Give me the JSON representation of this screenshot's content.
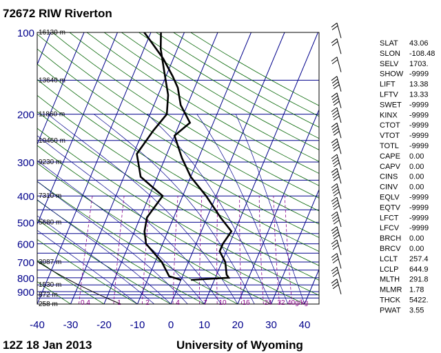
{
  "header": {
    "title": "72672 RIW Riverton"
  },
  "footer": {
    "time": "12Z 18 Jan 2013",
    "source": "University of Wyoming"
  },
  "chart_data": {
    "type": "line",
    "title": "72672 RIW Riverton",
    "pressure_ticks": [
      100,
      200,
      300,
      400,
      500,
      600,
      700,
      800,
      900
    ],
    "temperature_ticks": [
      -40,
      -30,
      -20,
      -10,
      0,
      10,
      20,
      30,
      40
    ],
    "xlim": [
      -40,
      40
    ],
    "ylim": [
      1000,
      100
    ],
    "y_scale": "log",
    "height_labels": [
      {
        "p": 100,
        "label": "16130 m"
      },
      {
        "p": 150,
        "label": "13640 m"
      },
      {
        "p": 200,
        "label": "11860 m"
      },
      {
        "p": 250,
        "label": "10460 m"
      },
      {
        "p": 300,
        "label": "9230 m"
      },
      {
        "p": 400,
        "label": "7310 m"
      },
      {
        "p": 500,
        "label": "5680 m"
      },
      {
        "p": 700,
        "label": "3087 m"
      },
      {
        "p": 850,
        "label": "1530 m"
      },
      {
        "p": 925,
        "label": "872 m"
      },
      {
        "p": 1000,
        "label": "258 m"
      }
    ],
    "mixing_ratio_labels": [
      "0.4",
      "1",
      "2",
      "4",
      "7",
      "10",
      "16",
      "24",
      "32",
      "40g/kg"
    ],
    "series": [
      {
        "name": "Temperature",
        "color": "#000000",
        "points": [
          {
            "p": 815,
            "t": 3
          },
          {
            "p": 800,
            "t": 14
          },
          {
            "p": 780,
            "t": 13
          },
          {
            "p": 700,
            "t": 11
          },
          {
            "p": 640,
            "t": 8
          },
          {
            "p": 600,
            "t": 8
          },
          {
            "p": 540,
            "t": 9
          },
          {
            "p": 480,
            "t": 4
          },
          {
            "p": 400,
            "t": -3
          },
          {
            "p": 340,
            "t": -10
          },
          {
            "p": 290,
            "t": -15
          },
          {
            "p": 240,
            "t": -20
          },
          {
            "p": 215,
            "t": -17
          },
          {
            "p": 185,
            "t": -22
          },
          {
            "p": 160,
            "t": -25
          },
          {
            "p": 145,
            "t": -28
          },
          {
            "p": 125,
            "t": -33
          },
          {
            "p": 105,
            "t": -40
          },
          {
            "p": 100,
            "t": -42
          }
        ]
      },
      {
        "name": "Dewpoint",
        "color": "#000000",
        "points": [
          {
            "p": 815,
            "t": 0
          },
          {
            "p": 790,
            "t": -4
          },
          {
            "p": 700,
            "t": -8
          },
          {
            "p": 600,
            "t": -15
          },
          {
            "p": 540,
            "t": -17
          },
          {
            "p": 480,
            "t": -18
          },
          {
            "p": 400,
            "t": -16
          },
          {
            "p": 340,
            "t": -25
          },
          {
            "p": 280,
            "t": -29
          },
          {
            "p": 230,
            "t": -27
          },
          {
            "p": 200,
            "t": -25
          },
          {
            "p": 170,
            "t": -27
          },
          {
            "p": 140,
            "t": -31
          },
          {
            "p": 115,
            "t": -35
          },
          {
            "p": 100,
            "t": -37
          }
        ]
      }
    ]
  },
  "indices": [
    {
      "label": "SLAT",
      "value": "43.06"
    },
    {
      "label": "SLON",
      "value": "-108.48"
    },
    {
      "label": "SELV",
      "value": "1703."
    },
    {
      "label": "SHOW",
      "value": "-9999"
    },
    {
      "label": "LIFT",
      "value": "13.38"
    },
    {
      "label": "LFTV",
      "value": "13.33"
    },
    {
      "label": "SWET",
      "value": "-9999"
    },
    {
      "label": "KINX",
      "value": "-9999"
    },
    {
      "label": "CTOT",
      "value": "-9999"
    },
    {
      "label": "VTOT",
      "value": "-9999"
    },
    {
      "label": "TOTL",
      "value": "-9999"
    },
    {
      "label": "CAPE",
      "value": "0.00"
    },
    {
      "label": "CAPV",
      "value": "0.00"
    },
    {
      "label": "CINS",
      "value": "0.00"
    },
    {
      "label": "CINV",
      "value": "0.00"
    },
    {
      "label": "EQLV",
      "value": "-9999"
    },
    {
      "label": "EQTV",
      "value": "-9999"
    },
    {
      "label": "LFCT",
      "value": "-9999"
    },
    {
      "label": "LFCV",
      "value": "-9999"
    },
    {
      "label": "BRCH",
      "value": "0.00"
    },
    {
      "label": "BRCV",
      "value": "0.00"
    },
    {
      "label": "LCLT",
      "value": "257.4"
    },
    {
      "label": "LCLP",
      "value": "644.9"
    },
    {
      "label": "MLTH",
      "value": "291.8"
    },
    {
      "label": "MLMR",
      "value": "1.78"
    },
    {
      "label": "THCK",
      "value": "5422."
    },
    {
      "label": "PWAT",
      "value": "3.55"
    }
  ],
  "colors": {
    "axis_text": "#00008b",
    "isobar": "#00008b",
    "isotherm": "#00008b",
    "dry_adiabat": "#006400",
    "mixing_ratio": "#8b008b",
    "moist_adiabat": "#00008b",
    "trace": "#000000"
  }
}
